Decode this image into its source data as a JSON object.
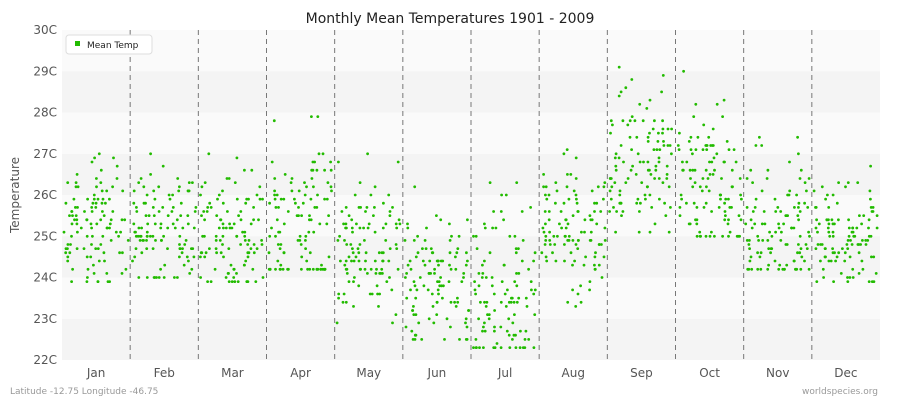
{
  "footer": {
    "left": "Latitude -12.75 Longitude -46.75",
    "right": "worldspecies.org"
  },
  "chart_data": {
    "type": "scatter",
    "title": "Monthly Mean Temperatures 1901 - 2009",
    "xlabel": "",
    "ylabel": "Temperature",
    "categories": [
      "Jan",
      "Feb",
      "Mar",
      "Apr",
      "May",
      "Jun",
      "Jul",
      "Aug",
      "Sep",
      "Oct",
      "Nov",
      "Dec"
    ],
    "yticks": [
      "22C",
      "23C",
      "24C",
      "25C",
      "26C",
      "27C",
      "28C",
      "29C",
      "30C"
    ],
    "ylim": [
      22,
      30
    ],
    "grid": true,
    "legend_position": "top-left",
    "series": [
      {
        "name": "Mean Temp",
        "color": "#22bb00",
        "years": [
          1901,
          2009
        ],
        "summary_by_month": [
          {
            "month": "Jan",
            "min": 23.9,
            "mean": 25.1,
            "max": 27.0
          },
          {
            "month": "Feb",
            "min": 24.0,
            "mean": 25.1,
            "max": 27.0
          },
          {
            "month": "Mar",
            "min": 23.9,
            "mean": 25.2,
            "max": 27.0
          },
          {
            "month": "Apr",
            "min": 24.2,
            "mean": 25.3,
            "max": 27.9
          },
          {
            "month": "May",
            "min": 22.9,
            "mean": 24.8,
            "max": 27.0
          },
          {
            "month": "Jun",
            "min": 22.5,
            "mean": 23.9,
            "max": 26.2
          },
          {
            "month": "Jul",
            "min": 22.3,
            "mean": 23.5,
            "max": 26.3
          },
          {
            "month": "Aug",
            "min": 23.3,
            "mean": 25.2,
            "max": 27.1
          },
          {
            "month": "Sep",
            "min": 25.1,
            "mean": 26.8,
            "max": 29.1
          },
          {
            "month": "Oct",
            "min": 25.0,
            "mean": 26.4,
            "max": 29.0
          },
          {
            "month": "Nov",
            "min": 24.2,
            "mean": 25.3,
            "max": 27.4
          },
          {
            "month": "Dec",
            "min": 23.9,
            "mean": 25.0,
            "max": 26.7
          }
        ]
      }
    ]
  }
}
